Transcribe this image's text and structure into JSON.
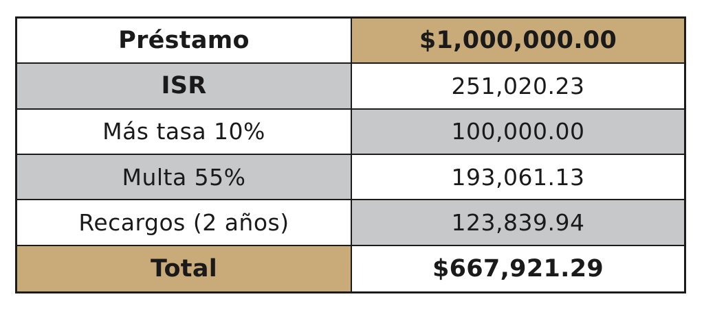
{
  "colors": {
    "header_value_bg": "#c9ab7a",
    "total_label_bg": "#c9ab7a",
    "gray_cell_bg": "#c7c8c9",
    "white_cell_bg": "#ffffff",
    "border": "#1b1b1b"
  },
  "table": {
    "rows": [
      {
        "label": "Préstamo",
        "value": "$1,000,000.00"
      },
      {
        "label": "ISR",
        "value": "251,020.23"
      },
      {
        "label": "Más tasa 10%",
        "value": "100,000.00"
      },
      {
        "label": "Multa 55%",
        "value": "193,061.13"
      },
      {
        "label": "Recargos (2 años)",
        "value": "123,839.94"
      },
      {
        "label": "Total",
        "value": "$667,921.29"
      }
    ]
  }
}
